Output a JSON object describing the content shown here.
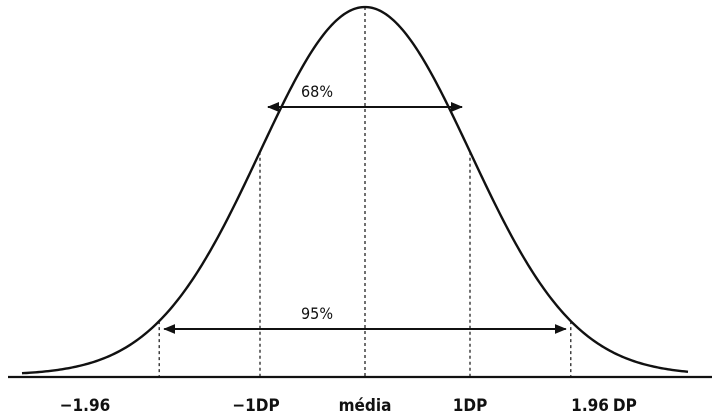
{
  "diagram": {
    "type": "normal-distribution",
    "colors": {
      "stroke": "#111111",
      "background": "#ffffff"
    },
    "interval_68": {
      "label": "68%",
      "from_sd": -1,
      "to_sd": 1
    },
    "interval_95": {
      "label": "95%",
      "from_sd": -1.96,
      "to_sd": 1.96
    },
    "axis_labels": {
      "minus_196": "−1.96",
      "minus_1": "−1",
      "minus_1_dp": "DP",
      "mean": "média",
      "plus_1": "1",
      "plus_1_dp": "DP",
      "plus_196": "1.96",
      "plus_196_dp": "DP"
    }
  }
}
